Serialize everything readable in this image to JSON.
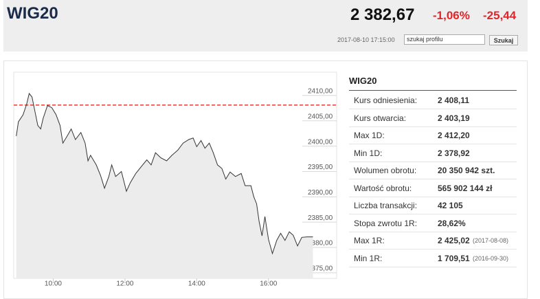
{
  "header": {
    "title": "WIG20",
    "price": "2 382,67",
    "change_pct": "-1,06%",
    "change": "-25,44",
    "datetime": "2017-08-10 17:15:00",
    "search_placeholder": "szukaj profilu",
    "search_button": "Szukaj"
  },
  "chart_data": {
    "type": "line",
    "color": "#333333",
    "area_color": "#ececec",
    "reference": 2408.11,
    "reference_color": "#e53935",
    "x": [
      8.97,
      9.03,
      9.16,
      9.26,
      9.33,
      9.41,
      9.49,
      9.57,
      9.65,
      9.72,
      9.84,
      9.96,
      10.08,
      10.19,
      10.27,
      10.39,
      10.5,
      10.62,
      10.77,
      10.89,
      10.97,
      11.04,
      11.2,
      11.32,
      11.43,
      11.55,
      11.63,
      11.74,
      11.9,
      12.04,
      12.15,
      12.3,
      12.46,
      12.61,
      12.73,
      12.85,
      13.0,
      13.16,
      13.31,
      13.47,
      13.62,
      13.78,
      13.9,
      14.0,
      14.12,
      14.23,
      14.35,
      14.46,
      14.58,
      14.7,
      14.81,
      14.93,
      15.08,
      15.24,
      15.35,
      15.51,
      15.59,
      15.67,
      15.74,
      15.82,
      15.9,
      16.0,
      16.11,
      16.23,
      16.34,
      16.46,
      16.58,
      16.69,
      16.81,
      16.93,
      17.08,
      17.24
    ],
    "values": [
      2402.0,
      2404.8,
      2406.2,
      2408.3,
      2410.4,
      2409.7,
      2406.9,
      2404.1,
      2403.4,
      2405.5,
      2408.0,
      2407.6,
      2406.2,
      2404.1,
      2400.6,
      2402.0,
      2403.4,
      2401.3,
      2402.7,
      2400.6,
      2397.1,
      2398.2,
      2396.3,
      2394.2,
      2391.7,
      2394.0,
      2396.3,
      2394.0,
      2395.0,
      2391.1,
      2392.8,
      2394.6,
      2396.0,
      2397.3,
      2396.3,
      2398.7,
      2397.7,
      2397.1,
      2398.2,
      2399.2,
      2400.6,
      2401.3,
      2401.6,
      2399.9,
      2401.1,
      2399.6,
      2400.6,
      2398.7,
      2396.3,
      2395.6,
      2393.5,
      2394.9,
      2394.0,
      2394.6,
      2392.2,
      2392.2,
      2390.0,
      2388.6,
      2385.1,
      2382.3,
      2386.1,
      2381.6,
      2378.8,
      2381.4,
      2382.8,
      2381.4,
      2383.1,
      2382.4,
      2380.3,
      2382.0,
      2382.1,
      2382.1
    ],
    "xlim": [
      8.9,
      17.9
    ],
    "ylim": [
      2373.9,
      2414.6
    ],
    "xticks": [
      {
        "value": 10,
        "label": "10:00"
      },
      {
        "value": 12,
        "label": "12:00"
      },
      {
        "value": 14,
        "label": "14:00"
      },
      {
        "value": 16,
        "label": "16:00"
      }
    ],
    "yticks": [
      {
        "value": 2410,
        "label": "2410,00"
      },
      {
        "value": 2405,
        "label": "2405,00"
      },
      {
        "value": 2400,
        "label": "2400,00"
      },
      {
        "value": 2395,
        "label": "2395,00"
      },
      {
        "value": 2390,
        "label": "2390,00"
      },
      {
        "value": 2385,
        "label": "2385,00"
      },
      {
        "value": 2380,
        "label": "2380,00"
      },
      {
        "value": 2375,
        "label": "2375,00"
      }
    ]
  },
  "table": {
    "title": "WIG20",
    "rows": [
      {
        "label": "Kurs odniesienia:",
        "value": "2 408,11"
      },
      {
        "label": "Kurs otwarcia:",
        "value": "2 403,19"
      },
      {
        "label": "Max 1D:",
        "value": "2 412,20"
      },
      {
        "label": "Min 1D:",
        "value": "2 378,92"
      },
      {
        "label": "Wolumen obrotu:",
        "value": "20 350 942 szt."
      },
      {
        "label": "Wartość obrotu:",
        "value": "565 902 144 zł"
      },
      {
        "label": "Liczba transakcji:",
        "value": "42 105"
      },
      {
        "label": "Stopa zwrotu 1R:",
        "value": "28,62%"
      },
      {
        "label": "Max 1R:",
        "value": "2 425,02",
        "note": "(2017-08-08)"
      },
      {
        "label": "Min 1R:",
        "value": "1 709,51",
        "note": "(2016-09-30)"
      }
    ]
  }
}
